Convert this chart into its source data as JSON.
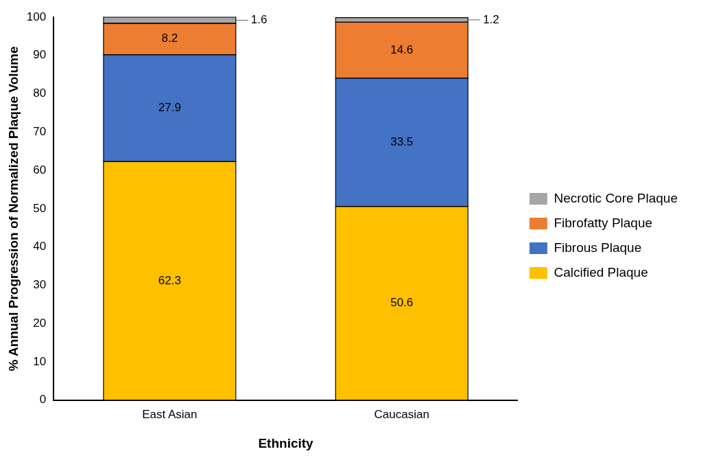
{
  "chart_data": {
    "type": "bar",
    "stacked": true,
    "xlabel": "Ethnicity",
    "ylabel": "% Annual Progression of Normalized Plaque Volume",
    "categories": [
      "East Asian",
      "Caucasian"
    ],
    "series": [
      {
        "name": "Calcified Plaque",
        "color": "#ffc000",
        "values": [
          62.3,
          50.6
        ]
      },
      {
        "name": "Fibrous Plaque",
        "color": "#4472c4",
        "values": [
          27.9,
          33.5
        ]
      },
      {
        "name": "Fibrofatty Plaque",
        "color": "#ed7d31",
        "values": [
          8.2,
          14.6
        ]
      },
      {
        "name": "Necrotic Core Plaque",
        "color": "#a6a6a6",
        "values": [
          1.6,
          1.2
        ]
      }
    ],
    "ylim": [
      0,
      100
    ],
    "yticks": [
      0,
      10,
      20,
      30,
      40,
      50,
      60,
      70,
      80,
      90,
      100
    ],
    "grid": false,
    "legend": "right",
    "data_labels": true
  }
}
